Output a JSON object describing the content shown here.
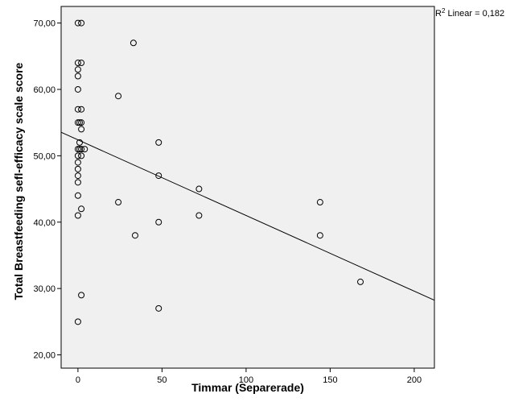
{
  "chart_data": {
    "type": "scatter",
    "title": "",
    "xlabel": "Timmar (Separerade)",
    "ylabel": "Total Breastfeeding sefl-efficacy scale score",
    "xlim": [
      -10,
      212
    ],
    "ylim": [
      18,
      72.5
    ],
    "x_ticks": [
      0,
      50,
      100,
      150,
      200
    ],
    "x_tick_labels": [
      "0",
      "50",
      "100",
      "150",
      "200"
    ],
    "y_ticks": [
      20,
      30,
      40,
      50,
      60,
      70
    ],
    "y_tick_labels": [
      "20,00",
      "30,00",
      "40,00",
      "50,00",
      "60,00",
      "70,00"
    ],
    "fit_line": {
      "label_prefix": "R",
      "label_superscript": "2",
      "label_suffix": " Linear = 0,182",
      "intercept": 52.4,
      "slope": -0.114
    },
    "points": [
      {
        "x": 0,
        "y": 70
      },
      {
        "x": 2,
        "y": 70
      },
      {
        "x": 0,
        "y": 64
      },
      {
        "x": 2,
        "y": 64
      },
      {
        "x": 0,
        "y": 63
      },
      {
        "x": 0,
        "y": 62
      },
      {
        "x": 0,
        "y": 60
      },
      {
        "x": 0,
        "y": 57
      },
      {
        "x": 2,
        "y": 57
      },
      {
        "x": 0,
        "y": 55
      },
      {
        "x": 1,
        "y": 55
      },
      {
        "x": 2,
        "y": 55
      },
      {
        "x": 2,
        "y": 54
      },
      {
        "x": 1,
        "y": 52
      },
      {
        "x": 0,
        "y": 51
      },
      {
        "x": 1,
        "y": 51
      },
      {
        "x": 2,
        "y": 51
      },
      {
        "x": 4,
        "y": 51
      },
      {
        "x": 0,
        "y": 50
      },
      {
        "x": 2,
        "y": 50
      },
      {
        "x": 0,
        "y": 49
      },
      {
        "x": 0,
        "y": 48
      },
      {
        "x": 0,
        "y": 47
      },
      {
        "x": 0,
        "y": 46
      },
      {
        "x": 0,
        "y": 44
      },
      {
        "x": 2,
        "y": 42
      },
      {
        "x": 0,
        "y": 41
      },
      {
        "x": 2,
        "y": 29
      },
      {
        "x": 0,
        "y": 25
      },
      {
        "x": 24,
        "y": 59
      },
      {
        "x": 24,
        "y": 43
      },
      {
        "x": 33,
        "y": 67
      },
      {
        "x": 34,
        "y": 38
      },
      {
        "x": 48,
        "y": 52
      },
      {
        "x": 48,
        "y": 47
      },
      {
        "x": 48,
        "y": 40
      },
      {
        "x": 48,
        "y": 27
      },
      {
        "x": 72,
        "y": 45
      },
      {
        "x": 72,
        "y": 41
      },
      {
        "x": 144,
        "y": 43
      },
      {
        "x": 144,
        "y": 38
      },
      {
        "x": 168,
        "y": 31
      }
    ],
    "grid": false,
    "marker": "hollow-circle",
    "colors": {
      "plot_background": "#f0f0f0",
      "marker_stroke": "#000000",
      "line": "#000000",
      "axis": "#000000"
    }
  }
}
